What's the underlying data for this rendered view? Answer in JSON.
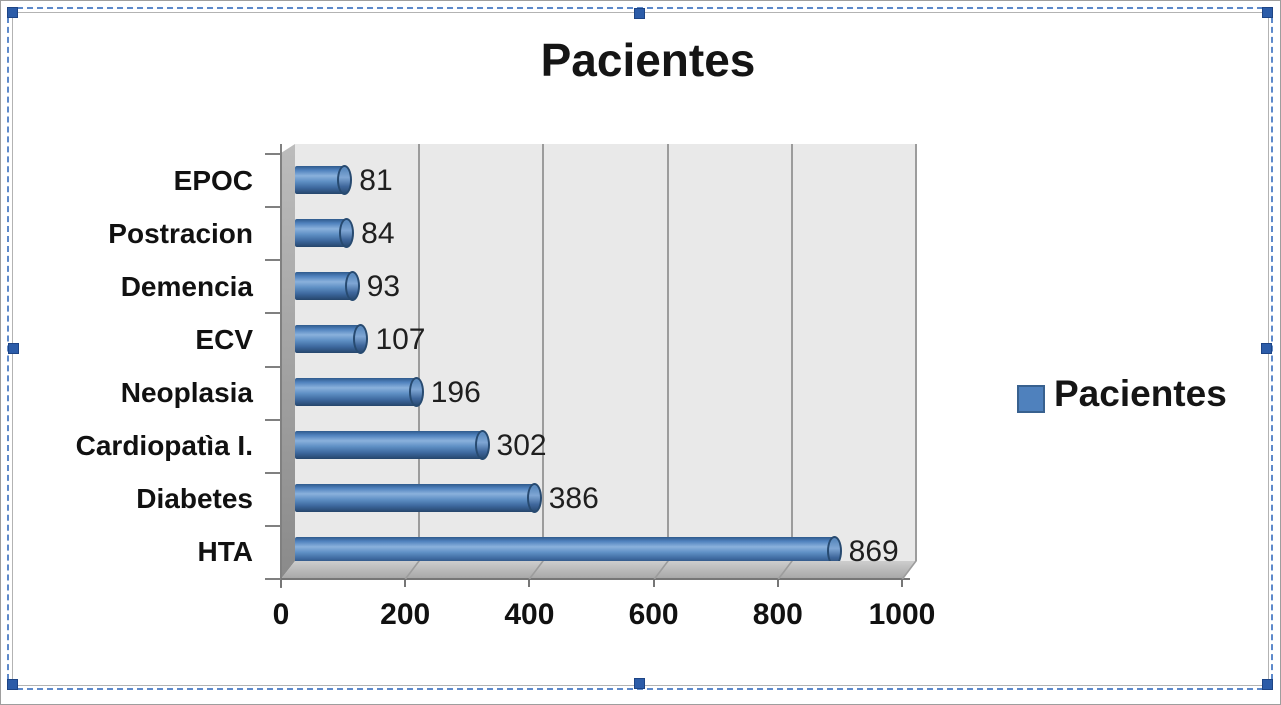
{
  "chart_data": {
    "type": "bar",
    "orientation": "horizontal",
    "style": "3d-cylinder",
    "title": "Pacientes",
    "categories": [
      "EPOC",
      "Postracion",
      "Demencia",
      "ECV",
      "Neoplasia",
      "Cardiopatìa I.",
      "Diabetes",
      "HTA"
    ],
    "values": [
      81,
      84,
      93,
      107,
      196,
      302,
      386,
      869
    ],
    "data_labels": [
      81,
      84,
      93,
      107,
      196,
      302,
      386,
      869
    ],
    "xlim": [
      0,
      1000
    ],
    "x_ticks": [
      0,
      200,
      400,
      600,
      800,
      1000
    ],
    "grid": "vertical",
    "legend": {
      "label": "Pacientes",
      "position": "right"
    },
    "colors": {
      "bar": "#4f81bd",
      "bar_shadow": "#25456b",
      "plot_background": "#e9e9e9",
      "wall": "#9e9e9e",
      "gridline": "#9c9c9c",
      "text": "#111111"
    }
  },
  "selection": {
    "style": "dashed-border-with-handles",
    "border_color": "#5d89ca",
    "handle_color": "#2c5ca8",
    "handles": [
      "nw",
      "n",
      "ne",
      "w",
      "e",
      "sw",
      "s",
      "se"
    ]
  }
}
